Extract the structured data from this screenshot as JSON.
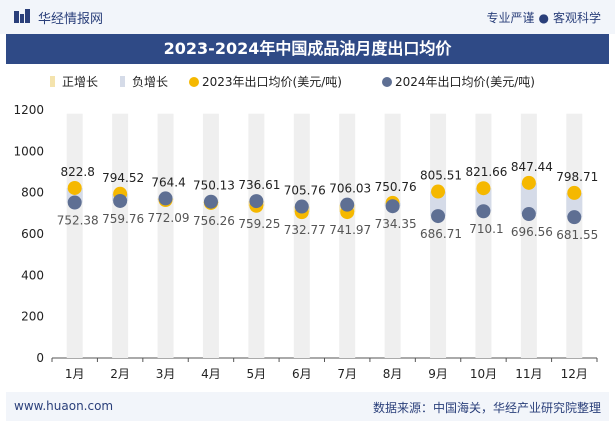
{
  "header": {
    "brand": "华经情报网",
    "tagline_left": "专业严谨",
    "tagline_right": "客观科学",
    "title": "2023-2024年中国成品油月度出口均价"
  },
  "footer": {
    "website": "www.huaon.com",
    "source": "数据来源：中国海关，华经产业研究院整理"
  },
  "colors": {
    "increase_bar": "#f4e3ad",
    "decrease_bar": "#d5dbe8",
    "neutral_bar": "#efefef",
    "series_2023": "#f5b800",
    "series_2024": "#5e6f93",
    "title_band": "#2f4a86"
  },
  "chart_data": {
    "type": "scatter",
    "title": "2023-2024年中国成品油月度出口均价",
    "categories": [
      "1月",
      "2月",
      "3月",
      "4月",
      "5月",
      "6月",
      "7月",
      "8月",
      "9月",
      "10月",
      "11月",
      "12月"
    ],
    "legend": [
      "正增长",
      "负增长",
      "2023年出口均价(美元/吨)",
      "2024年出口均价(美元/吨)"
    ],
    "legend_position": "top",
    "series": [
      {
        "name": "2023年出口均价(美元/吨)",
        "values": [
          822.8,
          794.52,
          764.4,
          750.13,
          736.61,
          705.76,
          706.03,
          750.76,
          805.51,
          821.66,
          847.44,
          798.71
        ]
      },
      {
        "name": "2024年出口均价(美元/吨)",
        "values": [
          752.38,
          759.76,
          772.09,
          756.26,
          759.25,
          732.77,
          741.97,
          734.35,
          686.71,
          710.1,
          696.56,
          681.55
        ]
      }
    ],
    "ylim": [
      0,
      1200
    ],
    "yticks": [
      0,
      200,
      400,
      600,
      800,
      1000,
      1200
    ],
    "grid": false
  }
}
